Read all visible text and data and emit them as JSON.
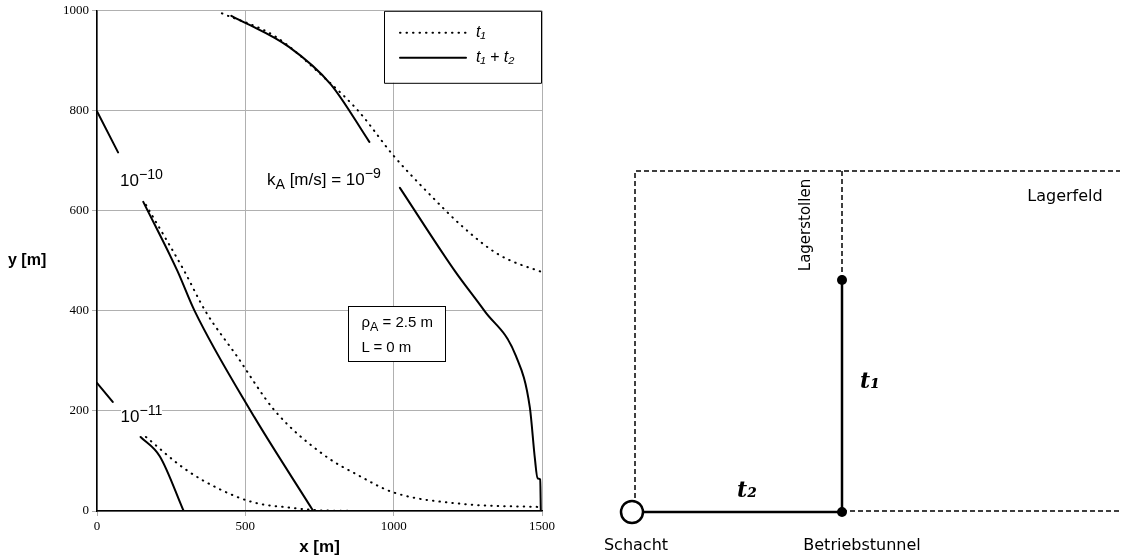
{
  "chart_data": {
    "type": "line",
    "xlabel": "x [m]",
    "ylabel": "y [m]",
    "xlim": [
      0,
      1500
    ],
    "ylim": [
      0,
      1000
    ],
    "xticks": [
      0,
      500,
      1000,
      1500
    ],
    "yticks": [
      0,
      200,
      400,
      600,
      800,
      1000
    ],
    "grid": true,
    "legend": "top right",
    "marker": "none",
    "series": [
      {
        "name": "t₁",
        "color": "#000000",
        "line_style": "dotted",
        "x": [
          421,
          600,
          765,
          882,
          1000,
          1118,
          1235,
          1353,
          1494,
          1500
        ],
        "values": [
          995,
          949,
          867,
          799,
          710,
          635,
          567,
          513,
          479,
          478
        ]
      },
      {
        "name": "t₁ + t₂",
        "color": "#000000",
        "line_style": "solid",
        "x": [
          453,
          647,
          788,
          918,
          970,
          1021,
          1206,
          1306,
          1412,
          1459,
          1476,
          1485,
          1494,
          1496
        ],
        "values": [
          990,
          928,
          853,
          738,
          null,
          646,
          480,
          400,
          310,
          207,
          105,
          65,
          63,
          0
        ]
      },
      {
        "color": "#000000",
        "line_style": "dotted",
        "x": [
          165,
          294,
          365,
          471,
          600,
          765,
          882,
          1000,
          1235,
          1494
        ],
        "values": [
          612,
          480,
          400,
          310,
          200,
          112,
          71,
          37,
          14,
          8
        ]
      },
      {
        "color": "#000000",
        "line_style": "solid",
        "x": [
          0,
          71,
          110,
          156,
          271,
          329,
          518,
          729
        ],
        "values": [
          799,
          717,
          null,
          618,
          480,
          400,
          200,
          0
        ]
      },
      {
        "color": "#000000",
        "line_style": "dotted",
        "x": [
          165,
          294,
          412,
          529,
          647,
          765,
          1000,
          1188
        ],
        "values": [
          148,
          85,
          44,
          17,
          7,
          1,
          0,
          0
        ]
      },
      {
        "color": "#000000",
        "line_style": "solid",
        "x": [
          0,
          53,
          100,
          147,
          212,
          292
        ],
        "values": [
          256,
          218,
          null,
          148,
          109,
          0
        ]
      }
    ],
    "annotations": [
      "k$_{A}$ [m/s] = 10$^{−9}$",
      "10$^{−10}$",
      "10$^{−11}$",
      "ρ$_{A}$ = 2.5 m",
      "L = 0 m",
      "Lagerfeld",
      "Lagerstollen",
      "t₁",
      "t₂",
      "Schacht",
      "Betriebstunnel"
    ]
  }
}
